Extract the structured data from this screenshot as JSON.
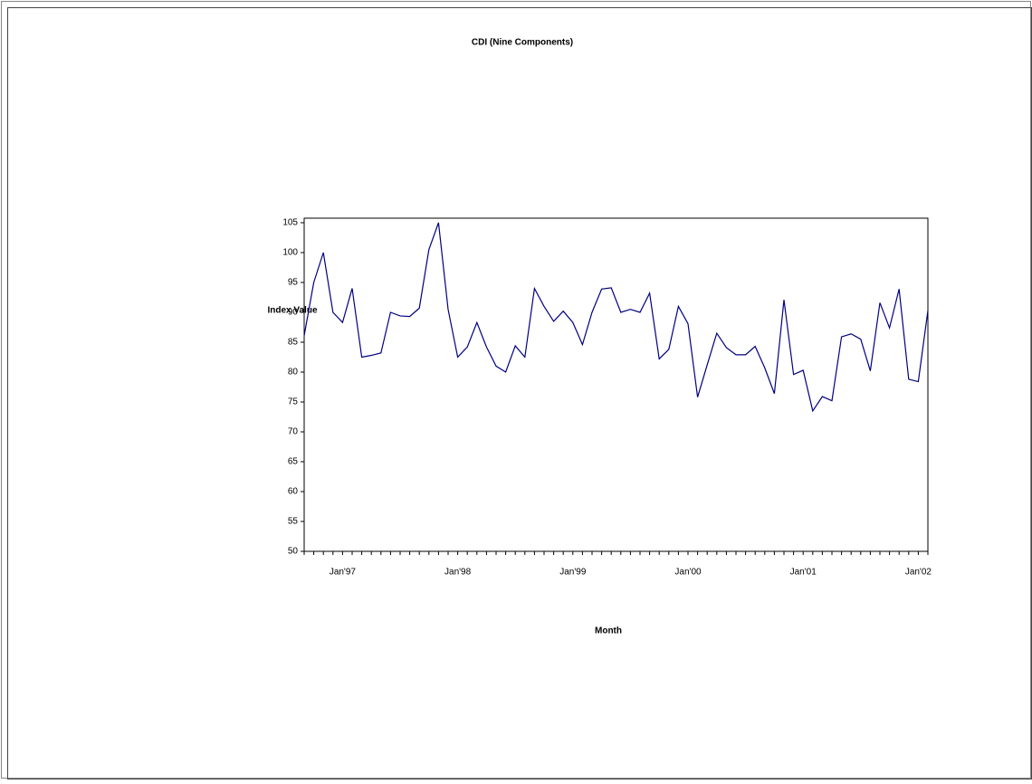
{
  "chart_data": {
    "type": "line",
    "title": "CDI (Nine Components)",
    "x_label": "Month",
    "y_label": "Index Value",
    "categories": [
      null,
      null,
      null,
      null,
      "Jan'97",
      null,
      null,
      null,
      null,
      null,
      null,
      null,
      null,
      null,
      null,
      null,
      "Jan'98",
      null,
      null,
      null,
      null,
      null,
      null,
      null,
      null,
      null,
      null,
      null,
      "Jan'99",
      null,
      null,
      null,
      null,
      null,
      null,
      null,
      null,
      null,
      null,
      null,
      "Jan'00",
      null,
      null,
      null,
      null,
      null,
      null,
      null,
      null,
      null,
      null,
      null,
      "Jan'01",
      null,
      null,
      null,
      null,
      null,
      null,
      null,
      null,
      null,
      null,
      null,
      "Jan'02",
      null
    ],
    "series": [
      {
        "name": "CDI",
        "color": "#000080",
        "values": [
          86.1,
          95,
          100,
          90,
          88.3,
          94,
          82.5,
          82.8,
          83.2,
          90,
          89.4,
          89.3,
          90.7,
          100.5,
          105,
          90.5,
          82.5,
          84.2,
          88.3,
          84.2,
          81,
          80,
          84.4,
          82.5,
          94,
          91,
          88.5,
          90.2,
          88.3,
          84.6,
          90,
          93.9,
          94.1,
          90,
          90.5,
          90,
          93.2,
          82.2,
          83.8,
          91,
          88.1,
          75.8,
          81.2,
          86.5,
          84.1,
          82.9,
          82.9,
          84.3,
          80.7,
          76.4,
          92.1,
          79.6,
          80.3,
          73.5,
          75.9,
          75.2,
          85.9,
          86.4,
          85.5,
          80.2,
          91.6,
          87.4,
          93.9,
          78.8,
          78.4,
          90.3
        ]
      }
    ],
    "ylim": [
      50,
      105
    ],
    "yticks": [
      50,
      55,
      60,
      65,
      70,
      75,
      80,
      85,
      90,
      95,
      100,
      105
    ]
  }
}
